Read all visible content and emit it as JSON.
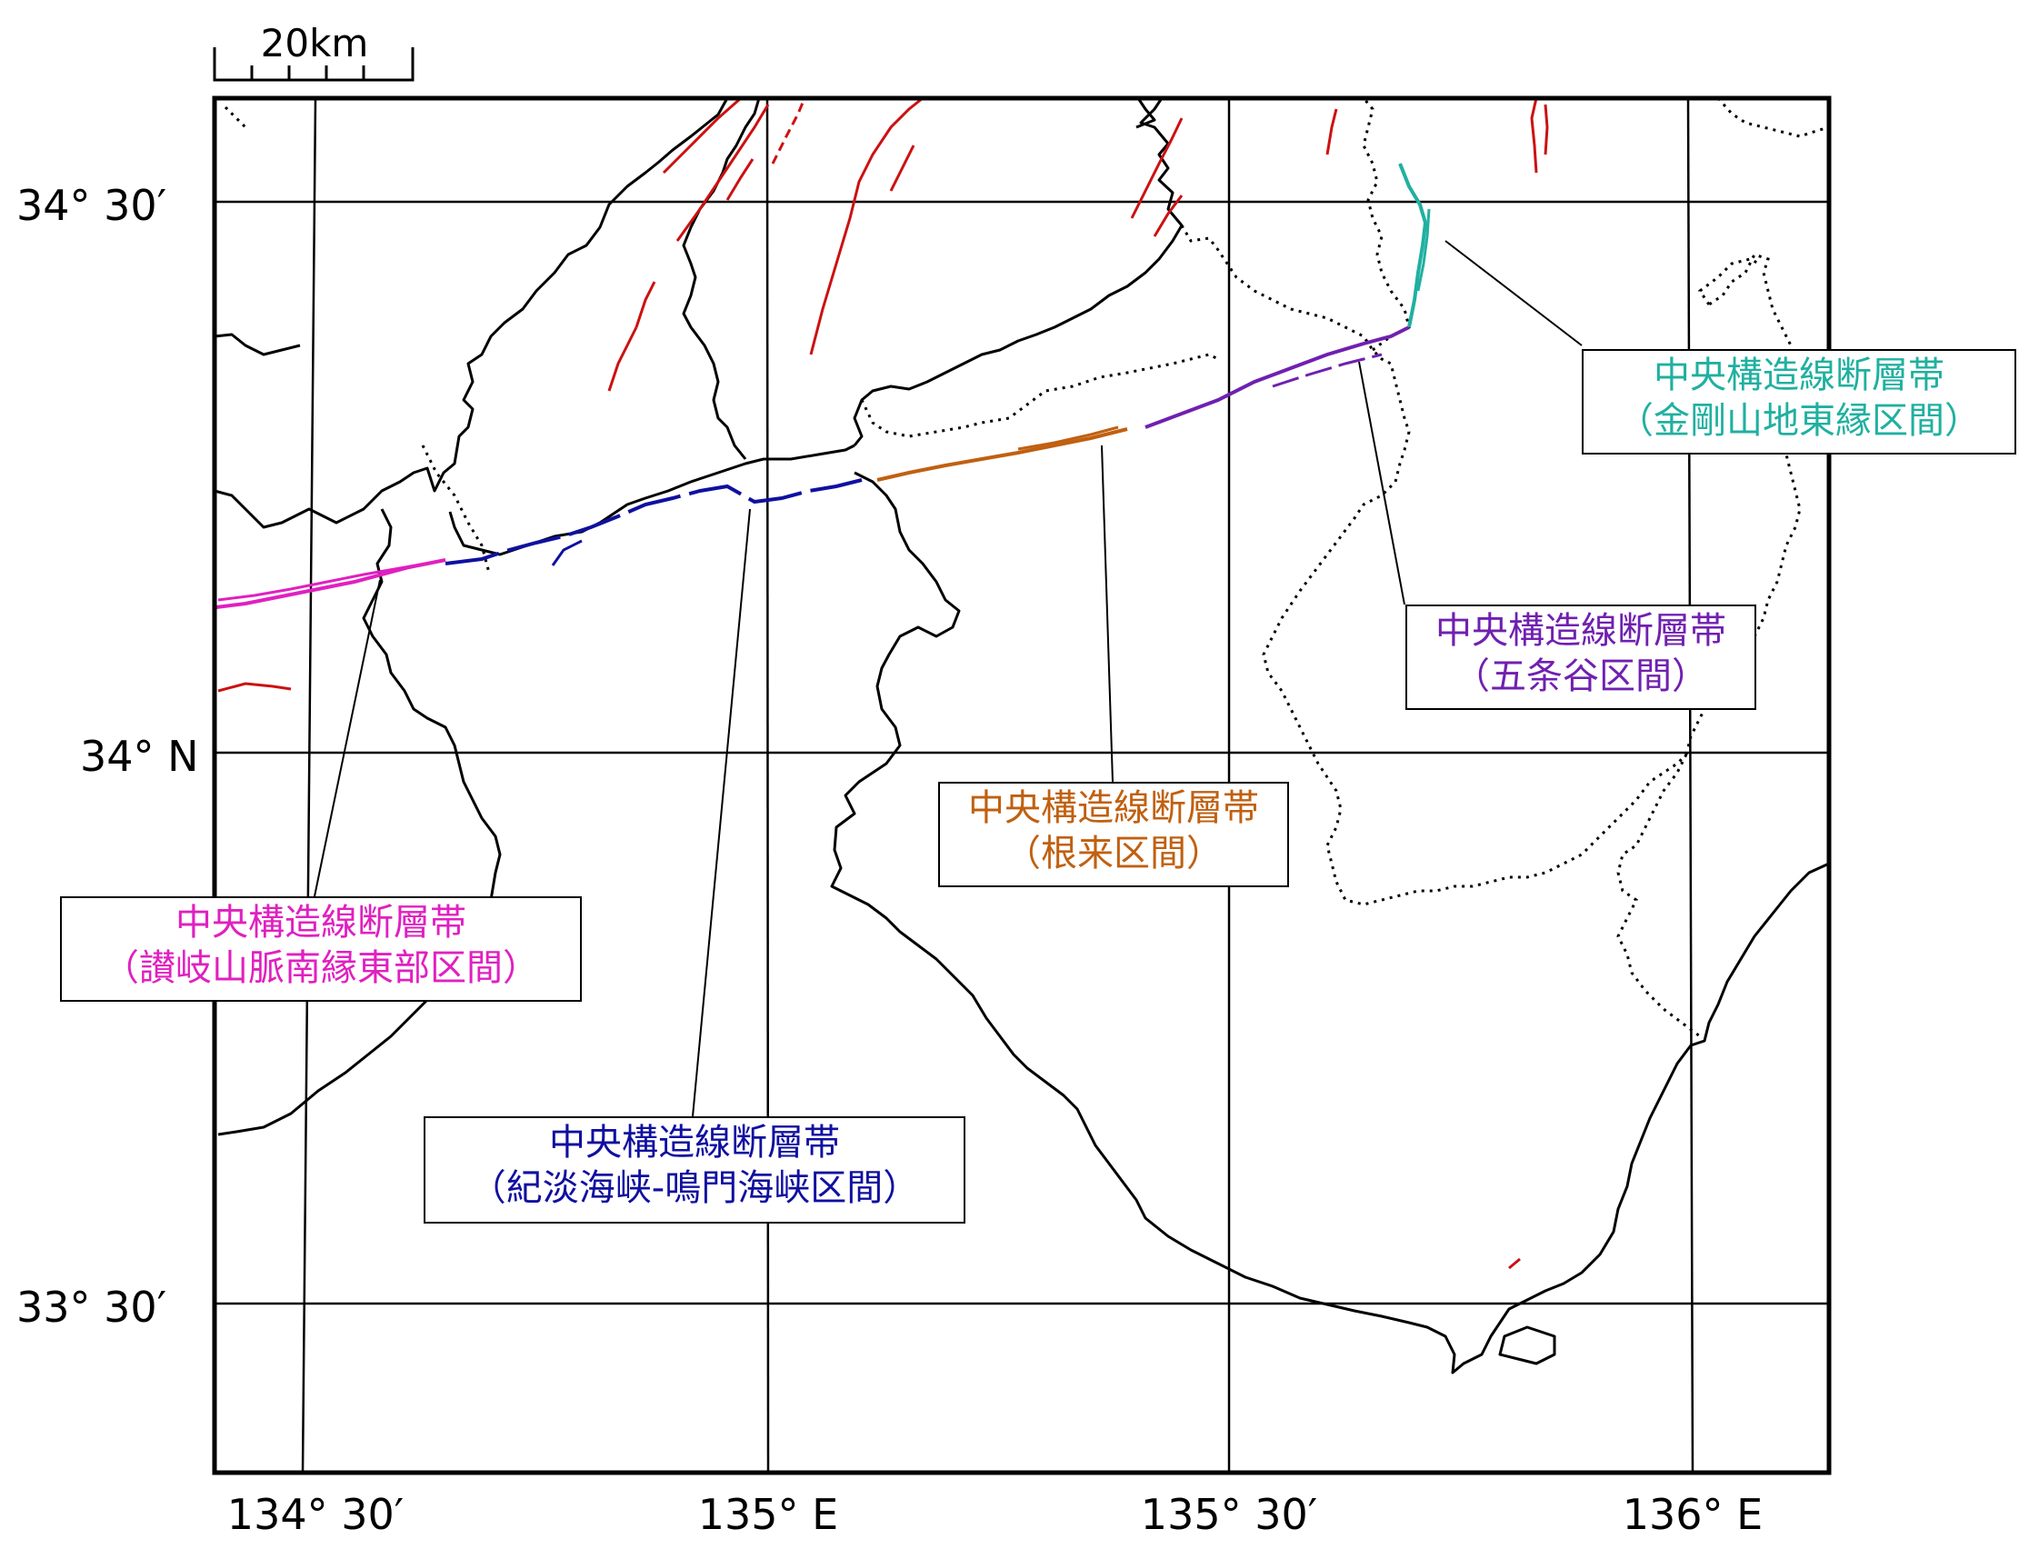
{
  "scale_bar": {
    "label": "20km"
  },
  "lat_labels": [
    "34° 30′",
    "34° N",
    "33° 30′"
  ],
  "lon_labels": [
    "134° 30′",
    "135° E",
    "135° 30′",
    "136° E"
  ],
  "colors": {
    "sanuki": "#e020c0",
    "kitan": "#1010a0",
    "negoro": "#c06010",
    "gojodani": "#7020b0",
    "kongo": "#20b0a0",
    "other_faults": "#cc1111"
  },
  "segments": [
    {
      "id": "sanuki",
      "name": "中央構造線断層帯",
      "section": "（讃岐山脈南縁東部区間）"
    },
    {
      "id": "kitan",
      "name": "中央構造線断層帯",
      "section": "（紀淡海峡-鳴門海峡区間）"
    },
    {
      "id": "negoro",
      "name": "中央構造線断層帯",
      "section": "（根来区間）"
    },
    {
      "id": "gojodani",
      "name": "中央構造線断層帯",
      "section": "（五条谷区間）"
    },
    {
      "id": "kongo",
      "name": "中央構造線断層帯",
      "section": "（金剛山地東縁区間）"
    }
  ]
}
